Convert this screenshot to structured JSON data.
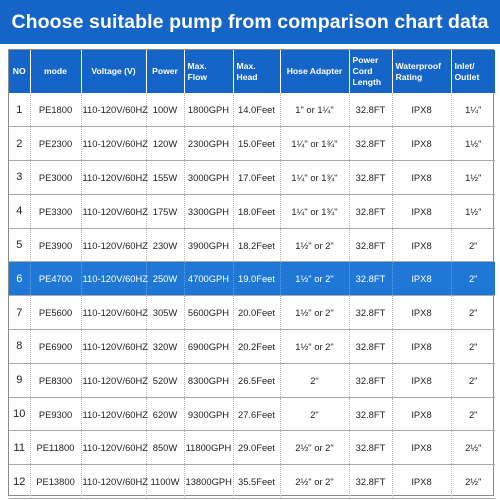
{
  "title": "Choose suitable pump from comparison chart data",
  "colors": {
    "header_blue": "#1565c8",
    "highlight_blue": "#1f78d6"
  },
  "headers": {
    "no": "NO",
    "model": "mode",
    "voltage": "Voltage (V)",
    "power": "Power",
    "flow_1": "Max.",
    "flow_2": "Flow",
    "head_1": "Max.",
    "head_2": "Head",
    "hose": "Hose Adapter",
    "cord_1": "Power",
    "cord_2": "Cord",
    "cord_3": "Length",
    "rating_1": "Waterproof",
    "rating_2": "Rating",
    "inlet_1": "Inlet/",
    "inlet_2": "Outlet"
  },
  "highlighted_row": "6",
  "rows": [
    {
      "no": "1",
      "model": "PE1800",
      "voltage": "110-120V/60HZ",
      "power": "100W",
      "flow": "1800GPH",
      "head": "14.0Feet",
      "hose": "1\" or 1¼\"",
      "cord": "32.8FT",
      "rating": "IPX8",
      "inlet": "1¼\""
    },
    {
      "no": "2",
      "model": "PE2300",
      "voltage": "110-120V/60HZ",
      "power": "120W",
      "flow": "2300GPH",
      "head": "15.0Feet",
      "hose": "1¼\" or 1¾\"",
      "cord": "32.8FT",
      "rating": "IPX8",
      "inlet": "1½\""
    },
    {
      "no": "3",
      "model": "PE3000",
      "voltage": "110-120V/60HZ",
      "power": "155W",
      "flow": "3000GPH",
      "head": "17.0Feet",
      "hose": "1¼\" or 1¾\"",
      "cord": "32.8FT",
      "rating": "IPX8",
      "inlet": "1½\""
    },
    {
      "no": "4",
      "model": "PE3300",
      "voltage": "110-120V/60HZ",
      "power": "175W",
      "flow": "3300GPH",
      "head": "18.0Feet",
      "hose": "1¼\" or 1¾\"",
      "cord": "32.8FT",
      "rating": "IPX8",
      "inlet": "1½\""
    },
    {
      "no": "5",
      "model": "PE3900",
      "voltage": "110-120V/60HZ",
      "power": "230W",
      "flow": "3900GPH",
      "head": "18.2Feet",
      "hose": "1½\" or 2\"",
      "cord": "32.8FT",
      "rating": "IPX8",
      "inlet": "2\""
    },
    {
      "no": "6",
      "model": "PE4700",
      "voltage": "110-120V/60HZ",
      "power": "250W",
      "flow": "4700GPH",
      "head": "19.0Feet",
      "hose": "1½\" or 2\"",
      "cord": "32.8FT",
      "rating": "IPX8",
      "inlet": "2\""
    },
    {
      "no": "7",
      "model": "PE5600",
      "voltage": "110-120V/60HZ",
      "power": "305W",
      "flow": "5600GPH",
      "head": "20.0Feet",
      "hose": "1½\" or 2\"",
      "cord": "32.8FT",
      "rating": "IPX8",
      "inlet": "2\""
    },
    {
      "no": "8",
      "model": "PE6900",
      "voltage": "110-120V/60HZ",
      "power": "320W",
      "flow": "6900GPH",
      "head": "20.2Feet",
      "hose": "1½\" or 2\"",
      "cord": "32.8FT",
      "rating": "IPX8",
      "inlet": "2\""
    },
    {
      "no": "9",
      "model": "PE8300",
      "voltage": "110-120V/60HZ",
      "power": "520W",
      "flow": "8300GPH",
      "head": "26.5Feet",
      "hose": "2\"",
      "cord": "32.8FT",
      "rating": "IPX8",
      "inlet": "2\""
    },
    {
      "no": "10",
      "model": "PE9300",
      "voltage": "110-120V/60HZ",
      "power": "620W",
      "flow": "9300GPH",
      "head": "27.6Feet",
      "hose": "2\"",
      "cord": "32.8FT",
      "rating": "IPX8",
      "inlet": "2\""
    },
    {
      "no": "11",
      "model": "PE11800",
      "voltage": "110-120V/60HZ",
      "power": "850W",
      "flow": "11800GPH",
      "head": "29.0Feet",
      "hose": "2½\" or 2\"",
      "cord": "32.8FT",
      "rating": "IPX8",
      "inlet": "2½\""
    },
    {
      "no": "12",
      "model": "PE13800",
      "voltage": "110-120V/60HZ",
      "power": "1100W",
      "flow": "13800GPH",
      "head": "35.5Feet",
      "hose": "2½\" or 2\"",
      "cord": "32.8FT",
      "rating": "IPX8",
      "inlet": "2½\""
    }
  ]
}
